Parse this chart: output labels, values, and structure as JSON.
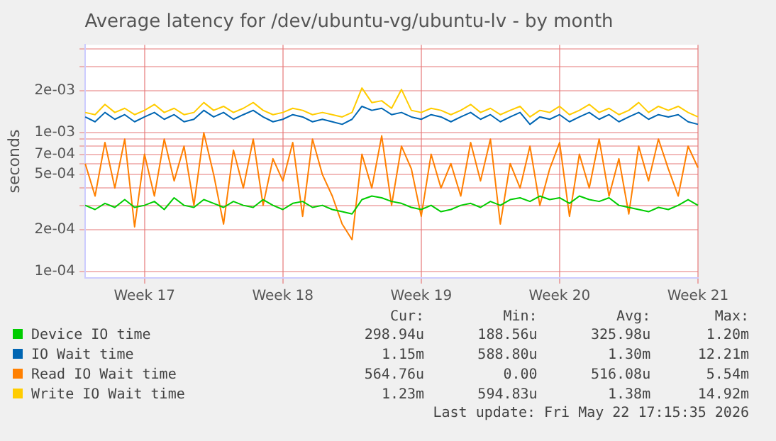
{
  "chart_data": {
    "type": "line",
    "title": "Average latency for /dev/ubuntu-vg/ubuntu-lv - by month",
    "ylabel": "seconds",
    "log": "y",
    "grid": true,
    "legend": "bottom",
    "categories": [
      null,
      null,
      null,
      null,
      null,
      null,
      "Week 17",
      null,
      null,
      null,
      null,
      null,
      null,
      null,
      null,
      null,
      null,
      null,
      null,
      null,
      "Week 18",
      null,
      null,
      null,
      null,
      null,
      null,
      null,
      null,
      null,
      null,
      null,
      null,
      null,
      "Week 19",
      null,
      null,
      null,
      null,
      null,
      null,
      null,
      null,
      null,
      null,
      null,
      null,
      null,
      "Week 20",
      null,
      null,
      null,
      null,
      null,
      null,
      null,
      null,
      null,
      null,
      null,
      null,
      null,
      "Week 21"
    ],
    "ylim": [
      9e-05,
      0.0043
    ],
    "yticks": [
      {
        "value": 0.0001,
        "label": "1e-04"
      },
      {
        "value": 0.0002,
        "label": "2e-04"
      },
      {
        "value": 0.0003,
        "label": null
      },
      {
        "value": 0.0004,
        "label": null
      },
      {
        "value": 0.0005,
        "label": "5e-04"
      },
      {
        "value": 0.0006,
        "label": null
      },
      {
        "value": 0.0007,
        "label": "7e-04"
      },
      {
        "value": 0.0008,
        "label": null
      },
      {
        "value": 0.0009,
        "label": null
      },
      {
        "value": 0.001,
        "label": "1e-03"
      },
      {
        "value": 0.002,
        "label": "2e-03"
      },
      {
        "value": 0.003,
        "label": null
      },
      {
        "value": 0.004,
        "label": null
      }
    ],
    "series": [
      {
        "name": "Device IO time",
        "color": "#00cc00",
        "values": [
          0.0003,
          0.00028,
          0.00031,
          0.00029,
          0.00033,
          0.00029,
          0.0003,
          0.00032,
          0.00028,
          0.00034,
          0.0003,
          0.00029,
          0.00033,
          0.00031,
          0.00029,
          0.00032,
          0.0003,
          0.00029,
          0.00033,
          0.0003,
          0.00028,
          0.00031,
          0.00032,
          0.00029,
          0.0003,
          0.00028,
          0.00027,
          0.00026,
          0.00033,
          0.00035,
          0.00034,
          0.00032,
          0.00031,
          0.00029,
          0.00028,
          0.0003,
          0.00027,
          0.00028,
          0.0003,
          0.00031,
          0.00029,
          0.00032,
          0.0003,
          0.00033,
          0.00034,
          0.00032,
          0.00035,
          0.00033,
          0.00034,
          0.00031,
          0.00035,
          0.00033,
          0.00032,
          0.00034,
          0.0003,
          0.00029,
          0.00028,
          0.00027,
          0.00029,
          0.00028,
          0.0003,
          0.00033,
          0.0003
        ]
      },
      {
        "name": "IO Wait time",
        "color": "#0066b3",
        "values": [
          0.0013,
          0.0012,
          0.0014,
          0.00125,
          0.00135,
          0.0012,
          0.0013,
          0.0014,
          0.00125,
          0.00135,
          0.0012,
          0.00125,
          0.00145,
          0.0013,
          0.0014,
          0.00125,
          0.00135,
          0.00145,
          0.0013,
          0.0012,
          0.00125,
          0.00135,
          0.0013,
          0.0012,
          0.00125,
          0.0012,
          0.00115,
          0.00125,
          0.00155,
          0.00145,
          0.0015,
          0.00135,
          0.0014,
          0.0013,
          0.00125,
          0.00135,
          0.0013,
          0.0012,
          0.0013,
          0.0014,
          0.00125,
          0.00135,
          0.0012,
          0.0013,
          0.0014,
          0.00115,
          0.0013,
          0.00125,
          0.00135,
          0.0012,
          0.0013,
          0.0014,
          0.00125,
          0.00135,
          0.0012,
          0.0013,
          0.0014,
          0.00125,
          0.00135,
          0.0013,
          0.00135,
          0.0012,
          0.00115
        ]
      },
      {
        "name": "Read IO Wait time",
        "color": "#ff8000",
        "values": [
          0.0006,
          0.00035,
          0.00085,
          0.0004,
          0.0009,
          0.00021,
          0.0007,
          0.00035,
          0.0009,
          0.00045,
          0.0008,
          0.0003,
          0.001,
          0.0005,
          0.00022,
          0.00075,
          0.0004,
          0.0009,
          0.0003,
          0.00065,
          0.00045,
          0.00085,
          0.00025,
          0.0009,
          0.0005,
          0.00035,
          0.00022,
          0.00017,
          0.0007,
          0.0004,
          0.00095,
          0.0003,
          0.0008,
          0.00055,
          0.00025,
          0.0007,
          0.0004,
          0.0006,
          0.00035,
          0.00085,
          0.00045,
          0.0009,
          0.00022,
          0.0006,
          0.0004,
          0.0008,
          0.0003,
          0.00055,
          0.00085,
          0.00025,
          0.0007,
          0.0004,
          0.0009,
          0.00035,
          0.00065,
          0.00026,
          0.0008,
          0.00045,
          0.0009,
          0.00055,
          0.00035,
          0.0008,
          0.00056
        ]
      },
      {
        "name": "Write IO Wait time",
        "color": "#ffcc00",
        "values": [
          0.0014,
          0.00135,
          0.0016,
          0.0014,
          0.0015,
          0.00135,
          0.00145,
          0.0016,
          0.0014,
          0.0015,
          0.00135,
          0.0014,
          0.00165,
          0.00145,
          0.00155,
          0.0014,
          0.0015,
          0.00165,
          0.00145,
          0.00135,
          0.0014,
          0.0015,
          0.00145,
          0.00135,
          0.0014,
          0.00135,
          0.0013,
          0.0014,
          0.0021,
          0.00165,
          0.0017,
          0.0015,
          0.00205,
          0.00145,
          0.0014,
          0.0015,
          0.00145,
          0.00135,
          0.00145,
          0.0016,
          0.0014,
          0.0015,
          0.00135,
          0.00145,
          0.00155,
          0.0013,
          0.00145,
          0.0014,
          0.00155,
          0.00135,
          0.00145,
          0.0016,
          0.0014,
          0.0015,
          0.00135,
          0.00145,
          0.00165,
          0.0014,
          0.00155,
          0.00145,
          0.00155,
          0.0014,
          0.0013
        ]
      }
    ],
    "annotations": [
      "Cur:",
      "Min:",
      "Avg:",
      "Max:",
      "298.94u",
      "188.56u",
      "325.98u",
      "1.20m",
      "1.15m",
      "588.80u",
      "1.30m",
      "12.21m",
      "564.76u",
      "0.00",
      "516.08u",
      "5.54m",
      "1.23m",
      "594.83u",
      "1.38m",
      "14.92m",
      "Last update: Fri May 22 17:15:35 2026"
    ]
  }
}
